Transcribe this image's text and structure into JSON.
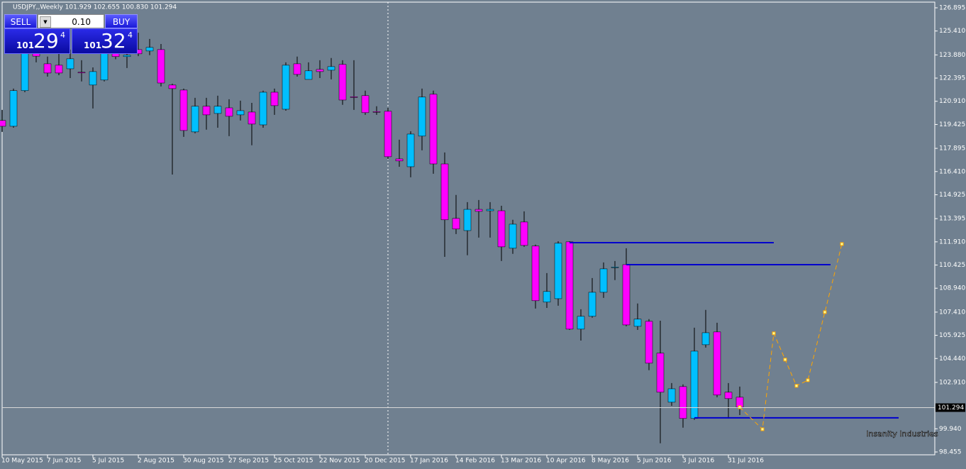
{
  "chart_data": {
    "type": "candlestick",
    "title": "USDJPY,,Weekly  101.929 102.655 100.830 101.294",
    "categories": [
      "10 May 2015",
      null,
      null,
      null,
      "7 Jun 2015",
      null,
      null,
      null,
      "5 Jul 2015",
      null,
      null,
      null,
      "2 Aug 2015",
      null,
      null,
      null,
      "30 Aug 2015",
      null,
      null,
      null,
      "27 Sep 2015",
      null,
      null,
      null,
      "25 Oct 2015",
      null,
      null,
      null,
      "22 Nov 2015",
      null,
      null,
      null,
      "20 Dec 2015",
      null,
      null,
      null,
      "17 Jan 2016",
      null,
      null,
      null,
      "14 Feb 2016",
      null,
      null,
      null,
      "13 Mar 2016",
      null,
      null,
      null,
      "10 Apr 2016",
      null,
      null,
      null,
      "8 May 2016",
      null,
      null,
      null,
      "5 Jun 2016",
      null,
      null,
      null,
      "3 Jul 2016",
      null,
      null,
      null,
      "31 Jul 2016",
      null
    ],
    "open": [
      119.68,
      119.31,
      121.59,
      123.99,
      123.31,
      123.22,
      122.99,
      122.77,
      121.95,
      122.27,
      123.99,
      123.77,
      124.22,
      124.13,
      124.22,
      121.95,
      121.63,
      118.95,
      120.59,
      120.13,
      120.49,
      120.04,
      120.22,
      119.4,
      121.49,
      120.4,
      123.31,
      122.31,
      122.95,
      122.9,
      123.27,
      121.2,
      121.27,
      120.25,
      120.27,
      117.22,
      116.72,
      118.68,
      121.36,
      116.9,
      113.41,
      112.63,
      113.99,
      113.9,
      113.9,
      111.5,
      113.18,
      111.64,
      108.05,
      108.27,
      111.91,
      106.32,
      107.14,
      108.68,
      110.27,
      110.45,
      106.5,
      106.82,
      104.78,
      101.64,
      102.64,
      100.6,
      105.32,
      106.14,
      102.28,
      101.96
    ],
    "high": [
      120.36,
      121.72,
      124.67,
      124.9,
      123.77,
      123.99,
      124.22,
      123.54,
      123.08,
      124.67,
      124.9,
      124.22,
      125.3,
      124.9,
      124.58,
      122.04,
      121.72,
      121.13,
      121.13,
      121.27,
      121.04,
      120.95,
      120.81,
      121.59,
      121.72,
      123.4,
      123.77,
      123.4,
      123.54,
      123.68,
      123.54,
      123.54,
      121.59,
      120.59,
      120.49,
      118.45,
      118.99,
      121.72,
      121.59,
      117.63,
      114.91,
      114.45,
      114.59,
      114.45,
      114.22,
      113.32,
      113.86,
      111.73,
      109.91,
      111.95,
      111.95,
      107.59,
      109.59,
      110.59,
      110.68,
      111.5,
      107.96,
      106.96,
      106.86,
      102.87,
      102.78,
      106.41,
      107.55,
      106.73,
      102.87,
      102.64
    ],
    "low": [
      118.95,
      119.22,
      121.49,
      123.4,
      122.49,
      122.58,
      122.4,
      122.18,
      120.45,
      122.18,
      123.6,
      123.04,
      123.8,
      123.86,
      121.86,
      116.22,
      118.63,
      118.86,
      119.09,
      119.22,
      118.68,
      119.68,
      118.09,
      119.22,
      120.04,
      120.31,
      122.49,
      122.31,
      122.4,
      122.31,
      120.68,
      120.36,
      120.04,
      120.04,
      117.22,
      116.72,
      116.04,
      117.77,
      116.27,
      110.95,
      112.41,
      111.05,
      112.18,
      112.18,
      110.68,
      111.14,
      111.59,
      107.64,
      107.68,
      107.82,
      106.27,
      105.59,
      107.05,
      108.32,
      109.46,
      106.5,
      106.27,
      103.69,
      99.01,
      101.41,
      100.01,
      100.51,
      105.14,
      101.96,
      100.6,
      100.82
    ],
    "close": [
      119.31,
      121.59,
      123.99,
      123.8,
      122.72,
      122.72,
      123.63,
      122.75,
      122.81,
      123.99,
      123.77,
      123.86,
      123.95,
      124.36,
      122.08,
      121.72,
      119.04,
      120.59,
      120.04,
      120.59,
      119.95,
      120.31,
      119.45,
      121.49,
      120.63,
      123.22,
      122.63,
      122.86,
      122.81,
      123.13,
      120.99,
      121.17,
      120.18,
      120.22,
      117.36,
      117.09,
      118.81,
      121.18,
      116.9,
      113.32,
      112.73,
      113.99,
      113.86,
      113.99,
      111.59,
      113.04,
      111.68,
      108.14,
      108.73,
      111.82,
      106.32,
      107.14,
      108.68,
      110.18,
      110.3,
      106.59,
      106.96,
      104.14,
      102.28,
      102.5,
      100.6,
      104.91,
      106.09,
      102.1,
      101.87,
      101.32
    ],
    "up_color": "#00bfff",
    "down_color": "#ff00ff",
    "wick_color": "#000000",
    "ylim": [
      98.273,
      127.395
    ],
    "yticks": [
      126.895,
      {
        "value": 125.41,
        "label": "125.410"
      },
      {
        "value": 123.88,
        "label": "123.880"
      },
      122.395,
      {
        "value": 120.91,
        "label": "120.910"
      },
      119.425,
      117.895,
      {
        "value": 116.41,
        "label": "116.410"
      },
      114.925,
      113.395,
      {
        "value": 111.91,
        "label": "111.910"
      },
      110.425,
      {
        "value": 108.94,
        "label": "108.940"
      },
      {
        "value": 107.41,
        "label": "107.410"
      },
      105.925,
      {
        "value": 104.44,
        "label": "104.440"
      },
      {
        "value": 102.91,
        "label": "102.910"
      },
      {
        "value": 99.94,
        "label": "99.940"
      },
      98.455
    ],
    "last_price": 101.294,
    "levels": [
      {
        "value": 111.86,
        "from": 50,
        "to": 68,
        "color": "#0000cd"
      },
      {
        "value": 110.45,
        "from": 55,
        "to": 73,
        "color": "#0000cd"
      },
      {
        "value": 100.64,
        "from": 61,
        "to": 79,
        "color": "#0000cd"
      }
    ],
    "projection": {
      "x": [
        65,
        67,
        68,
        69,
        70,
        71,
        72.5,
        74
      ],
      "values": [
        101.32,
        99.91,
        106.05,
        104.37,
        102.69,
        103.05,
        107.41,
        111.77
      ],
      "color": "#ffa500"
    },
    "crosshair_index": 34
  },
  "trade_panel": {
    "sell": "SELL",
    "lots": "0.10",
    "buy": "BUY",
    "bid_lead": "101",
    "bid_main": "29",
    "bid_tail": "4",
    "ask_lead": "101",
    "ask_main": "32",
    "ask_tail": "4"
  },
  "watermark": "Insanity Industries"
}
